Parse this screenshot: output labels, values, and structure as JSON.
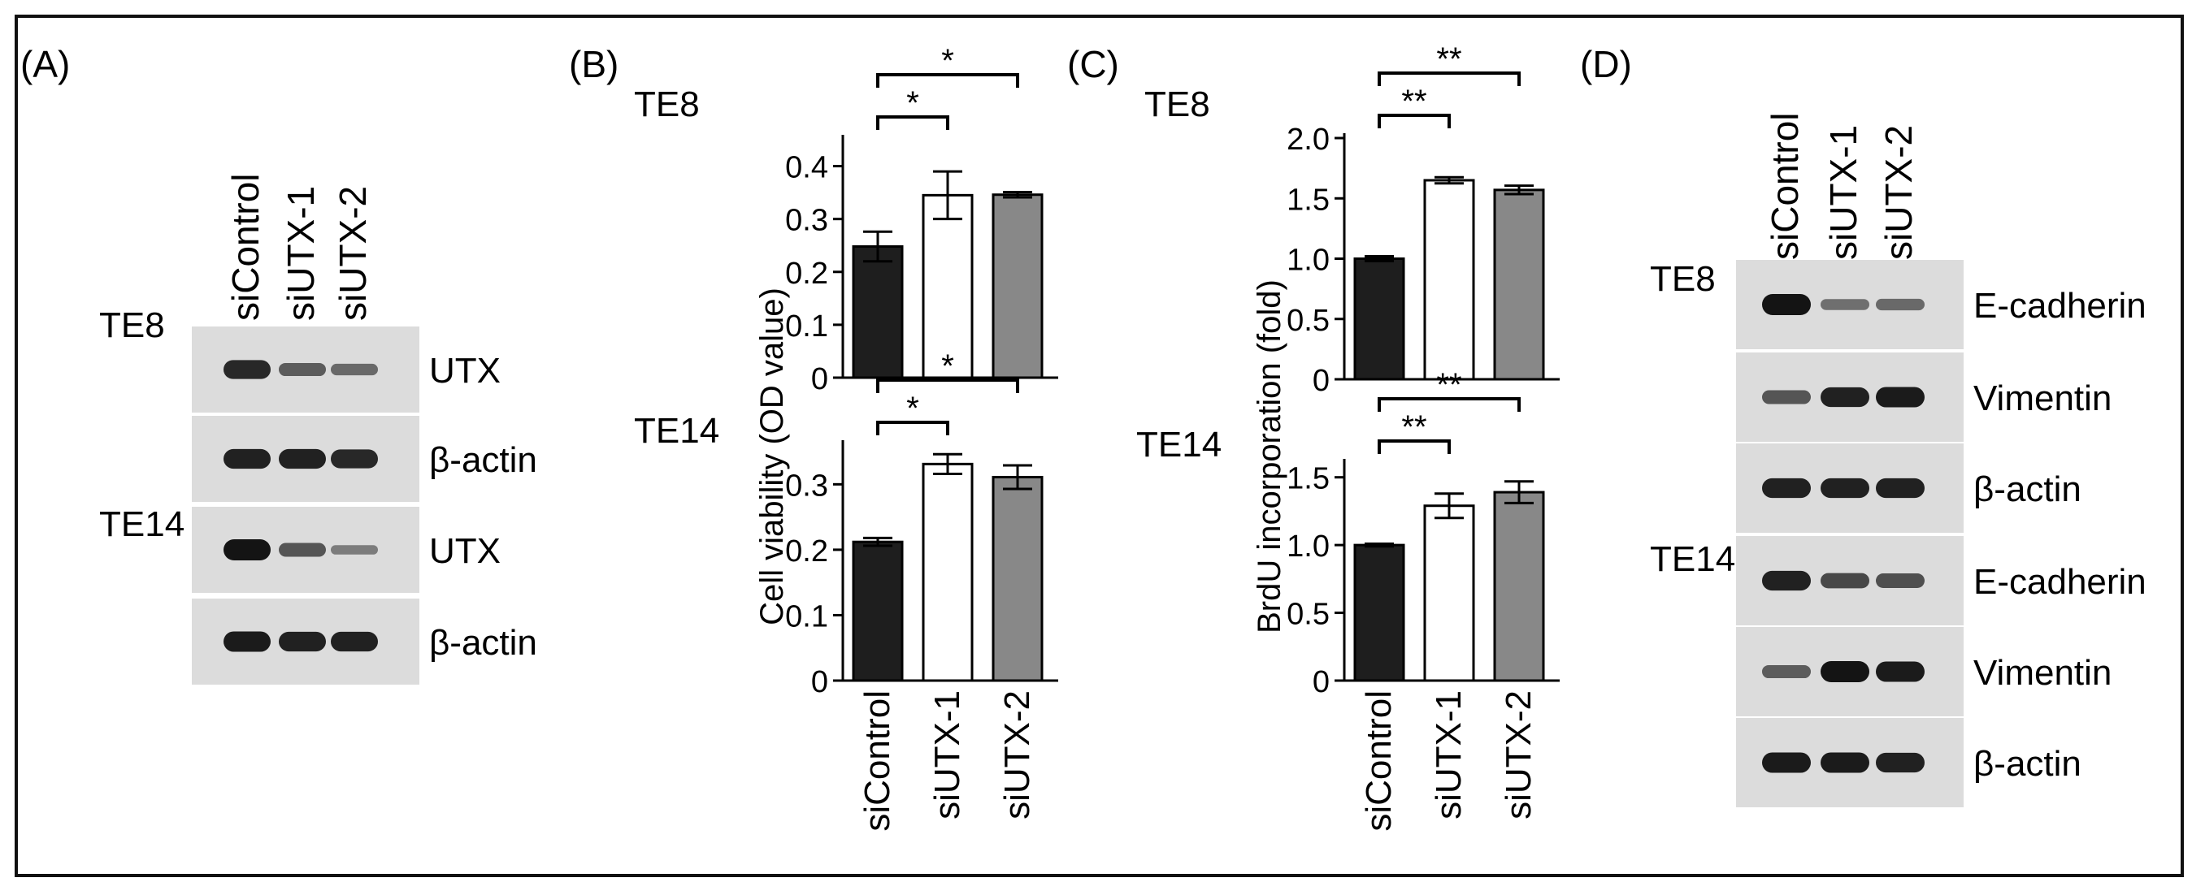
{
  "panels": {
    "A": {
      "label": "(A)",
      "lanes": [
        "siControl",
        "siUTX-1",
        "siUTX-2"
      ],
      "groups": [
        {
          "cell_line": "TE8",
          "blots": [
            {
              "protein": "UTX",
              "bands": [
                0.85,
                0.45,
                0.35
              ]
            },
            {
              "protein": "β-actin",
              "bands": [
                0.9,
                0.9,
                0.85
              ]
            }
          ]
        },
        {
          "cell_line": "TE14",
          "blots": [
            {
              "protein": "UTX",
              "bands": [
                1.0,
                0.5,
                0.2
              ]
            },
            {
              "protein": "β-actin",
              "bands": [
                0.95,
                0.9,
                0.9
              ]
            }
          ]
        }
      ]
    },
    "D": {
      "label": "(D)",
      "lanes": [
        "siControl",
        "siUTX-1",
        "siUTX-2"
      ],
      "groups": [
        {
          "cell_line": "TE8",
          "blots": [
            {
              "protein": "E-cadherin",
              "bands": [
                1.0,
                0.3,
                0.35
              ]
            },
            {
              "protein": "Vimentin",
              "bands": [
                0.5,
                0.9,
                0.95
              ]
            },
            {
              "protein": "β-actin",
              "bands": [
                0.9,
                0.9,
                0.9
              ]
            }
          ]
        },
        {
          "cell_line": "TE14",
          "blots": [
            {
              "protein": "E-cadherin",
              "bands": [
                0.9,
                0.6,
                0.55
              ]
            },
            {
              "protein": "Vimentin",
              "bands": [
                0.45,
                1.0,
                0.95
              ]
            },
            {
              "protein": "β-actin",
              "bands": [
                0.95,
                0.95,
                0.9
              ]
            }
          ]
        }
      ]
    }
  },
  "chart_data": [
    {
      "panel": "(B)",
      "title": "TE8",
      "type": "bar",
      "categories": [
        "siControl",
        "siUTX-1",
        "siUTX-2"
      ],
      "values": [
        0.248,
        0.345,
        0.346
      ],
      "errors": [
        0.028,
        0.045,
        0.005
      ],
      "colors": [
        "#1e1e1e",
        "#ffffff",
        "#888888"
      ],
      "ylim": [
        0,
        0.45
      ],
      "yticks": [
        "0",
        "0.1",
        "0.2",
        "0.3",
        "0.4"
      ],
      "ylabel": "Cell viability (OD value)",
      "significance": [
        {
          "from": 0,
          "to": 1,
          "label": "*"
        },
        {
          "from": 0,
          "to": 2,
          "label": "*"
        }
      ]
    },
    {
      "panel": "",
      "title": "TE14",
      "type": "bar",
      "categories": [
        "siControl",
        "siUTX-1",
        "siUTX-2"
      ],
      "values": [
        0.212,
        0.331,
        0.311
      ],
      "errors": [
        0.006,
        0.015,
        0.018
      ],
      "colors": [
        "#1e1e1e",
        "#ffffff",
        "#888888"
      ],
      "ylim": [
        0,
        0.36
      ],
      "yticks": [
        "0",
        "0.1",
        "0.2",
        "0.3"
      ],
      "ylabel": "",
      "significance": [
        {
          "from": 0,
          "to": 1,
          "label": "*"
        },
        {
          "from": 0,
          "to": 2,
          "label": "*"
        }
      ]
    },
    {
      "panel": "(C)",
      "title": "TE8",
      "type": "bar",
      "categories": [
        "siControl",
        "siUTX-1",
        "siUTX-2"
      ],
      "values": [
        1.0,
        1.65,
        1.57
      ],
      "errors": [
        0.02,
        0.025,
        0.035
      ],
      "colors": [
        "#1e1e1e",
        "#ffffff",
        "#888888"
      ],
      "ylim": [
        0,
        2.0
      ],
      "yticks": [
        "0",
        "0.5",
        "1.0",
        "1.5",
        "2.0"
      ],
      "ylabel": "BrdU incorporation (fold)",
      "significance": [
        {
          "from": 0,
          "to": 1,
          "label": "**"
        },
        {
          "from": 0,
          "to": 2,
          "label": "**"
        }
      ]
    },
    {
      "panel": "",
      "title": "TE14",
      "type": "bar",
      "categories": [
        "siControl",
        "siUTX-1",
        "siUTX-2"
      ],
      "values": [
        1.0,
        1.29,
        1.39
      ],
      "errors": [
        0.01,
        0.09,
        0.08
      ],
      "colors": [
        "#1e1e1e",
        "#ffffff",
        "#888888"
      ],
      "ylim": [
        0,
        1.6
      ],
      "yticks": [
        "0",
        "0.5",
        "1.0",
        "1.5"
      ],
      "ylabel": "",
      "significance": [
        {
          "from": 0,
          "to": 1,
          "label": "**"
        },
        {
          "from": 0,
          "to": 2,
          "label": "**"
        }
      ]
    }
  ]
}
